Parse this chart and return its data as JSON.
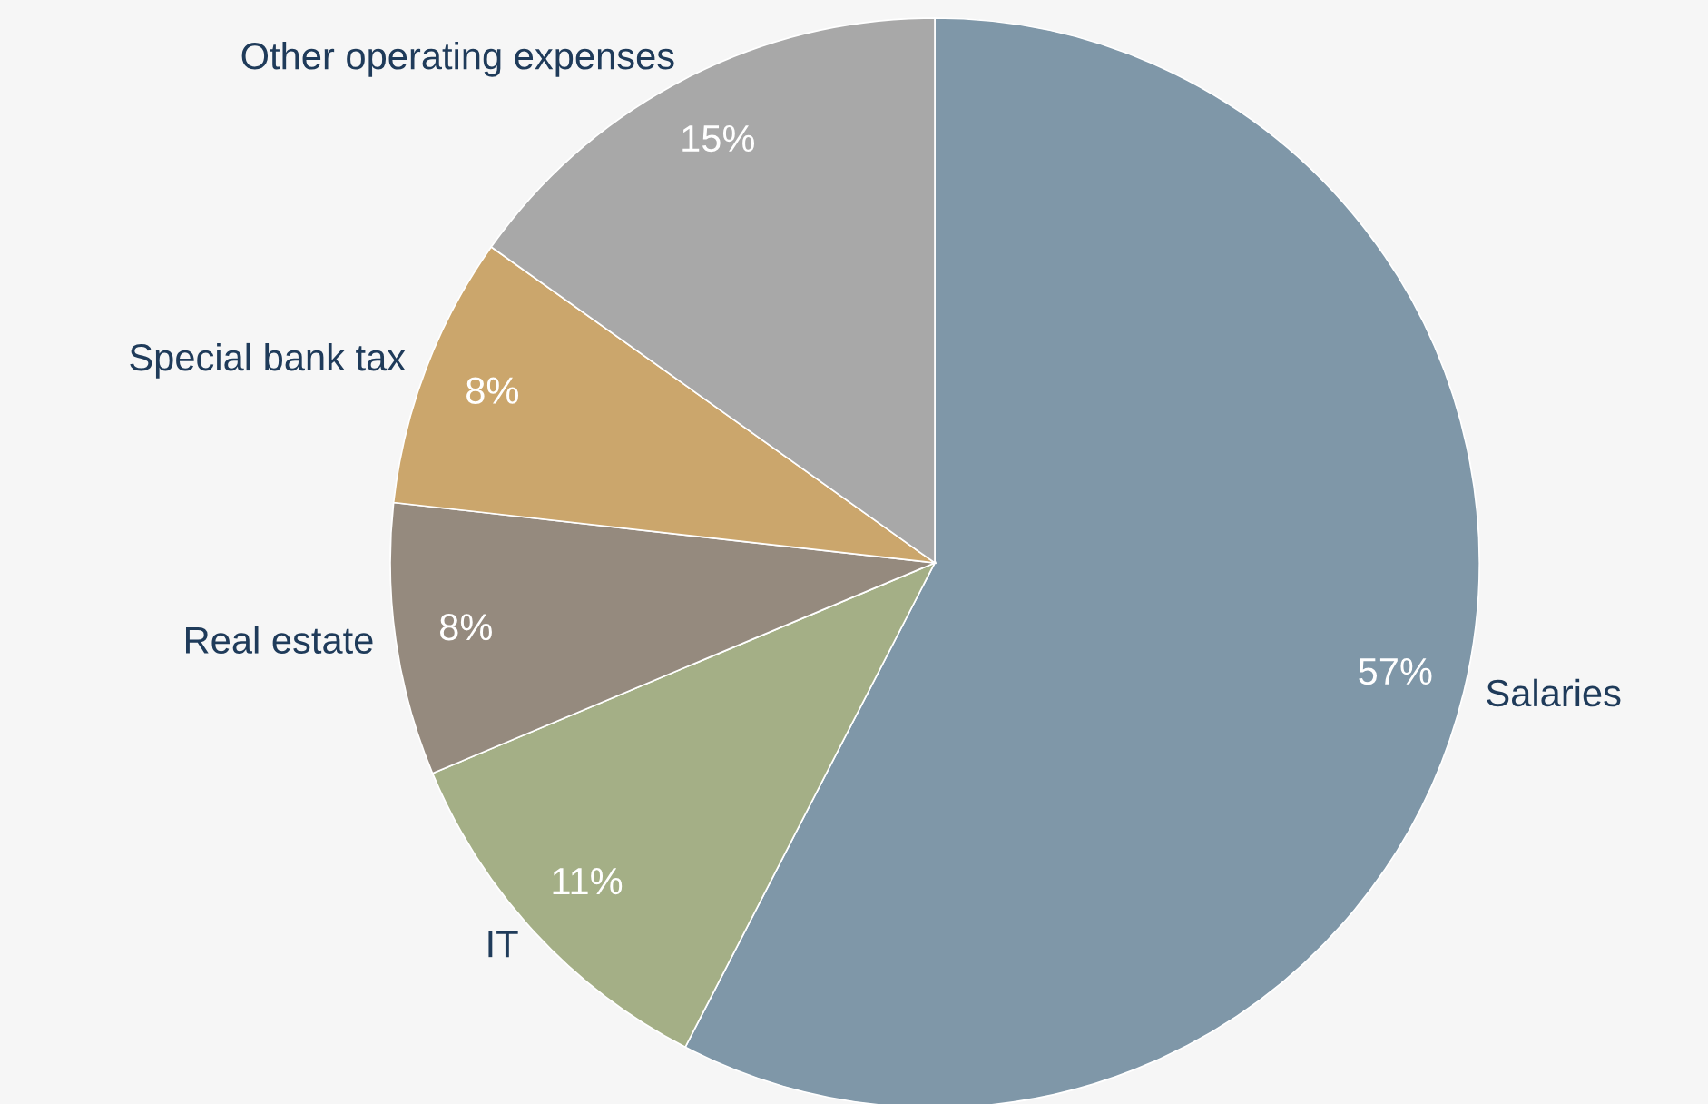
{
  "chart_data": {
    "type": "pie",
    "categories": [
      "Salaries",
      "IT",
      "Real estate",
      "Special bank tax",
      "Other operating expenses"
    ],
    "values": [
      57,
      11,
      8,
      8,
      15
    ],
    "value_labels": [
      "57%",
      "11%",
      "8%",
      "8%",
      "15%"
    ],
    "colors": [
      "#7f97a8",
      "#a4af86",
      "#958a7e",
      "#cba66c",
      "#a8a8a8"
    ]
  }
}
